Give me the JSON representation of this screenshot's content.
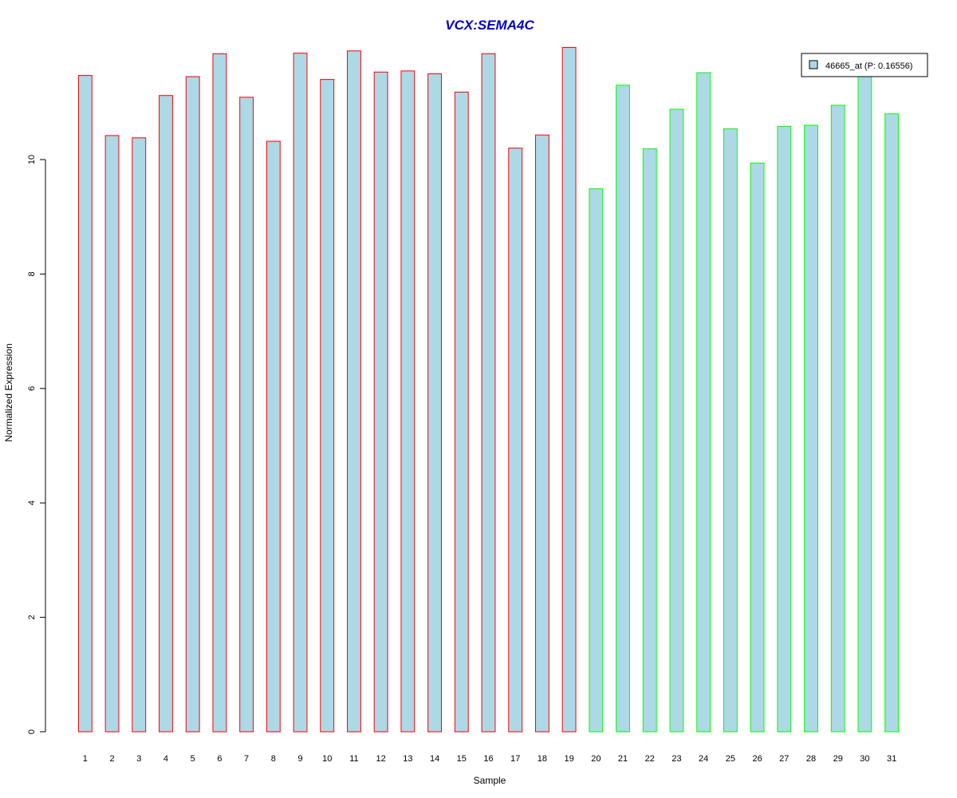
{
  "chart_data": {
    "type": "bar",
    "title": "VCX:SEMA4C",
    "xlabel": "Sample",
    "ylabel": "Normalized Expression",
    "categories": [
      "1",
      "2",
      "3",
      "4",
      "5",
      "6",
      "7",
      "8",
      "9",
      "10",
      "11",
      "12",
      "13",
      "14",
      "15",
      "16",
      "17",
      "18",
      "19",
      "20",
      "21",
      "22",
      "23",
      "24",
      "25",
      "26",
      "27",
      "28",
      "29",
      "30",
      "31"
    ],
    "values": [
      11.47,
      10.42,
      10.38,
      11.12,
      11.45,
      11.85,
      11.09,
      10.32,
      11.86,
      11.4,
      11.9,
      11.53,
      11.55,
      11.5,
      11.18,
      11.85,
      10.2,
      10.43,
      11.96,
      9.49,
      11.3,
      10.19,
      10.88,
      11.52,
      10.54,
      9.94,
      10.58,
      10.6,
      10.95,
      11.49,
      10.8
    ],
    "group_border_colors": [
      "#ff0000",
      "#ff0000",
      "#ff0000",
      "#ff0000",
      "#ff0000",
      "#ff0000",
      "#ff0000",
      "#ff0000",
      "#ff0000",
      "#ff0000",
      "#ff0000",
      "#ff0000",
      "#ff0000",
      "#ff0000",
      "#ff0000",
      "#ff0000",
      "#ff0000",
      "#ff0000",
      "#ff0000",
      "#00ff00",
      "#00ff00",
      "#00ff00",
      "#00ff00",
      "#00ff00",
      "#00ff00",
      "#00ff00",
      "#00ff00",
      "#00ff00",
      "#00ff00",
      "#00ff00",
      "#00ff00"
    ],
    "fill_color": "#add8e6",
    "title_color": "#0000cc",
    "yticks": [
      "0",
      "2",
      "4",
      "6",
      "8",
      "10"
    ],
    "ylim": [
      0,
      12.0
    ],
    "grid": false,
    "legend": {
      "placement": "top-right",
      "entries": [
        {
          "label": "46665_at (P: 0.16556)",
          "color": "#add8e6"
        }
      ]
    }
  }
}
